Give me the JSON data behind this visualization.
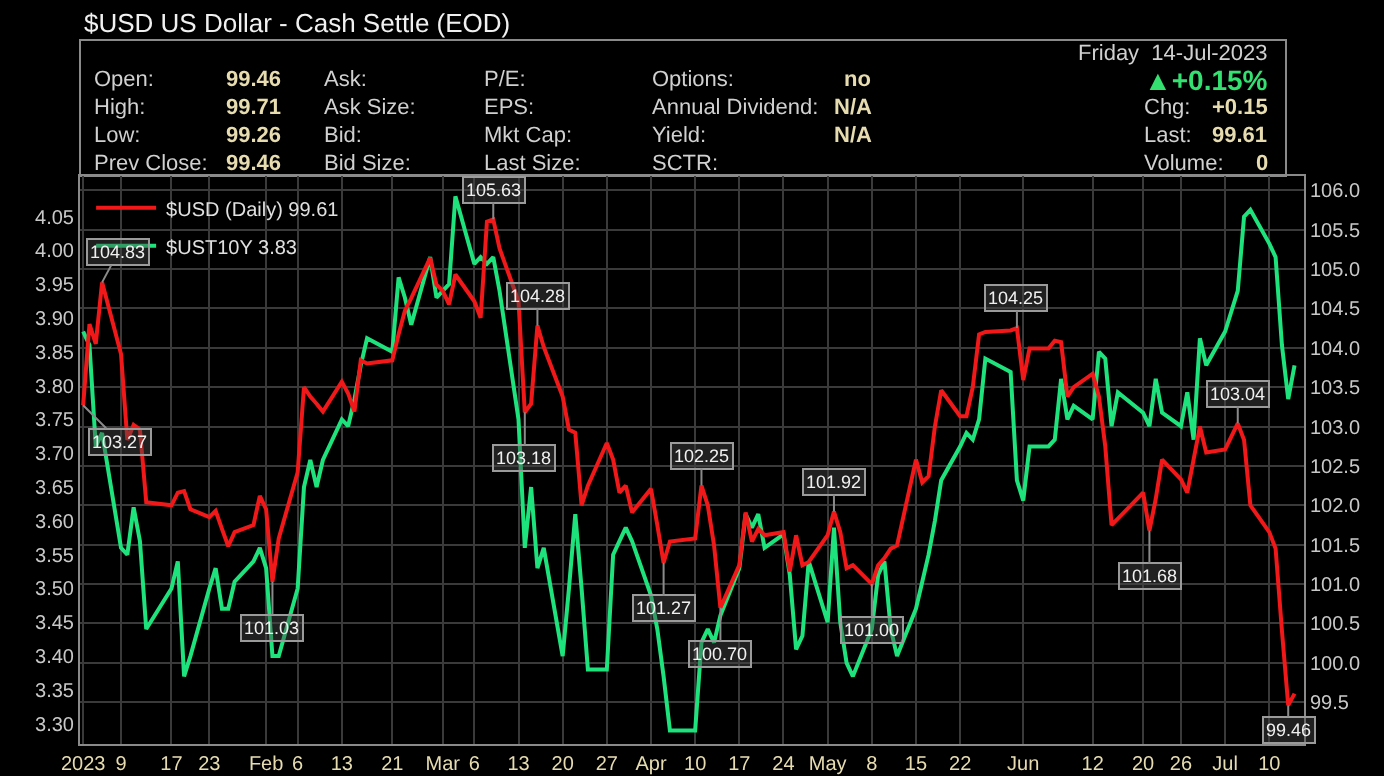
{
  "chart_data": {
    "type": "line",
    "title": "$USD US Dollar - Cash Settle (EOD)",
    "x": [
      "2023-01-03",
      "2023-01-04",
      "2023-01-05",
      "2023-01-06",
      "2023-01-09",
      "2023-01-10",
      "2023-01-11",
      "2023-01-12",
      "2023-01-13",
      "2023-01-17",
      "2023-01-18",
      "2023-01-19",
      "2023-01-20",
      "2023-01-23",
      "2023-01-24",
      "2023-01-25",
      "2023-01-26",
      "2023-01-27",
      "2023-01-30",
      "2023-01-31",
      "2023-02-01",
      "2023-02-02",
      "2023-02-03",
      "2023-02-06",
      "2023-02-07",
      "2023-02-08",
      "2023-02-09",
      "2023-02-10",
      "2023-02-13",
      "2023-02-14",
      "2023-02-15",
      "2023-02-16",
      "2023-02-17",
      "2023-02-21",
      "2023-02-22",
      "2023-02-23",
      "2023-02-24",
      "2023-02-27",
      "2023-02-28",
      "2023-03-01",
      "2023-03-02",
      "2023-03-03",
      "2023-03-06",
      "2023-03-07",
      "2023-03-08",
      "2023-03-09",
      "2023-03-10",
      "2023-03-13",
      "2023-03-14",
      "2023-03-15",
      "2023-03-16",
      "2023-03-17",
      "2023-03-20",
      "2023-03-21",
      "2023-03-22",
      "2023-03-23",
      "2023-03-24",
      "2023-03-27",
      "2023-03-28",
      "2023-03-29",
      "2023-03-30",
      "2023-03-31",
      "2023-04-03",
      "2023-04-04",
      "2023-04-05",
      "2023-04-06",
      "2023-04-10",
      "2023-04-11",
      "2023-04-12",
      "2023-04-13",
      "2023-04-14",
      "2023-04-17",
      "2023-04-18",
      "2023-04-19",
      "2023-04-20",
      "2023-04-21",
      "2023-04-24",
      "2023-04-25",
      "2023-04-26",
      "2023-04-27",
      "2023-04-28",
      "2023-05-01",
      "2023-05-02",
      "2023-05-03",
      "2023-05-04",
      "2023-05-05",
      "2023-05-08",
      "2023-05-09",
      "2023-05-10",
      "2023-05-11",
      "2023-05-12",
      "2023-05-15",
      "2023-05-16",
      "2023-05-17",
      "2023-05-18",
      "2023-05-19",
      "2023-05-22",
      "2023-05-23",
      "2023-05-24",
      "2023-05-25",
      "2023-05-26",
      "2023-05-30",
      "2023-05-31",
      "2023-06-01",
      "2023-06-02",
      "2023-06-05",
      "2023-06-06",
      "2023-06-07",
      "2023-06-08",
      "2023-06-09",
      "2023-06-12",
      "2023-06-13",
      "2023-06-14",
      "2023-06-15",
      "2023-06-16",
      "2023-06-20",
      "2023-06-21",
      "2023-06-22",
      "2023-06-23",
      "2023-06-26",
      "2023-06-27",
      "2023-06-28",
      "2023-06-29",
      "2023-06-30",
      "2023-07-03",
      "2023-07-05",
      "2023-07-06",
      "2023-07-07",
      "2023-07-10",
      "2023-07-11",
      "2023-07-12",
      "2023-07-13",
      "2023-07-14"
    ],
    "series": [
      {
        "name": "$USD (Daily) 99.61",
        "color": "#f01818",
        "axis": "y2",
        "values": [
          103.27,
          104.3,
          104.05,
          104.83,
          103.92,
          102.83,
          103.02,
          102.96,
          102.04,
          102.0,
          102.16,
          102.18,
          101.95,
          101.85,
          101.93,
          101.7,
          101.48,
          101.66,
          101.75,
          102.12,
          101.95,
          101.03,
          101.58,
          102.42,
          103.5,
          103.38,
          103.29,
          103.19,
          103.57,
          103.42,
          103.19,
          103.84,
          103.8,
          103.84,
          104.17,
          104.47,
          104.63,
          105.14,
          104.8,
          104.72,
          104.55,
          104.93,
          104.59,
          104.38,
          105.6,
          105.63,
          105.26,
          104.59,
          103.18,
          103.29,
          104.28,
          104.01,
          103.38,
          102.96,
          102.92,
          102.0,
          102.25,
          102.79,
          102.58,
          102.16,
          102.25,
          101.91,
          102.21,
          101.75,
          101.27,
          101.54,
          101.58,
          102.25,
          102.0,
          101.49,
          100.7,
          101.24,
          101.91,
          101.54,
          101.7,
          101.62,
          101.66,
          101.16,
          101.62,
          101.24,
          101.28,
          101.62,
          101.92,
          101.66,
          101.2,
          101.24,
          101.0,
          101.24,
          101.33,
          101.45,
          101.49,
          102.58,
          102.29,
          102.37,
          103.0,
          103.46,
          103.13,
          103.13,
          103.5,
          104.17,
          104.2,
          104.22,
          104.25,
          103.59,
          103.99,
          103.99,
          104.09,
          104.07,
          103.38,
          103.5,
          103.67,
          103.38,
          102.75,
          101.75,
          101.83,
          102.16,
          101.68,
          102.08,
          102.58,
          102.33,
          102.16,
          102.58,
          103.0,
          102.67,
          102.71,
          103.04,
          102.83,
          102.0,
          101.66,
          101.45,
          100.41,
          99.46,
          99.61
        ],
        "value_labels": [
          "103.27",
          null,
          null,
          "104.83",
          null,
          null,
          null,
          null,
          null,
          null,
          null,
          null,
          null,
          null,
          null,
          null,
          null,
          null,
          null,
          null,
          null,
          "101.03",
          null,
          null,
          null,
          null,
          null,
          null,
          null,
          null,
          null,
          null,
          null,
          null,
          null,
          null,
          null,
          null,
          null,
          null,
          null,
          null,
          null,
          null,
          null,
          "105.63",
          null,
          null,
          "103.18",
          null,
          "104.28",
          null,
          null,
          null,
          null,
          null,
          null,
          null,
          null,
          null,
          null,
          null,
          null,
          null,
          "101.27",
          null,
          null,
          "102.25",
          null,
          null,
          "100.70",
          null,
          null,
          null,
          null,
          null,
          null,
          null,
          null,
          null,
          null,
          null,
          "101.92",
          null,
          null,
          null,
          "101.00",
          null,
          null,
          null,
          null,
          null,
          null,
          null,
          null,
          null,
          null,
          null,
          null,
          null,
          null,
          null,
          "104.25",
          null,
          null,
          null,
          null,
          null,
          null,
          null,
          null,
          null,
          null,
          null,
          null,
          null,
          "101.68",
          null,
          null,
          null,
          null,
          null,
          null,
          null,
          null,
          "103.04",
          null,
          null,
          null,
          null,
          null,
          "99.46",
          null
        ]
      },
      {
        "name": "$UST10Y 3.83",
        "color": "#1ee37c",
        "axis": "y",
        "values": [
          3.88,
          3.86,
          3.71,
          3.73,
          3.56,
          3.55,
          3.62,
          3.57,
          3.44,
          3.5,
          3.54,
          3.37,
          3.4,
          3.5,
          3.53,
          3.47,
          3.47,
          3.51,
          3.54,
          3.56,
          3.53,
          3.4,
          3.4,
          3.5,
          3.65,
          3.69,
          3.65,
          3.69,
          3.75,
          3.74,
          3.78,
          3.83,
          3.87,
          3.85,
          3.96,
          3.93,
          3.89,
          3.99,
          3.93,
          3.94,
          3.95,
          4.08,
          3.98,
          3.99,
          3.98,
          3.99,
          3.94,
          3.75,
          3.56,
          3.65,
          3.53,
          3.56,
          3.4,
          3.5,
          3.61,
          3.5,
          3.38,
          3.38,
          3.55,
          3.57,
          3.59,
          3.57,
          3.49,
          3.44,
          3.37,
          3.29,
          3.29,
          3.42,
          3.44,
          3.42,
          3.46,
          3.53,
          3.61,
          3.59,
          3.61,
          3.56,
          3.58,
          3.52,
          3.41,
          3.43,
          3.54,
          3.45,
          3.59,
          3.45,
          3.39,
          3.37,
          3.44,
          3.52,
          3.54,
          3.44,
          3.4,
          3.47,
          3.51,
          3.55,
          3.6,
          3.66,
          3.71,
          3.73,
          3.72,
          3.75,
          3.84,
          3.82,
          3.66,
          3.63,
          3.71,
          3.71,
          3.72,
          3.81,
          3.75,
          3.77,
          3.75,
          3.85,
          3.84,
          3.74,
          3.79,
          3.76,
          3.74,
          3.81,
          3.76,
          3.74,
          3.79,
          3.72,
          3.87,
          3.83,
          3.88,
          3.94,
          4.05,
          4.06,
          4.01,
          3.99,
          3.86,
          3.78,
          3.83
        ]
      }
    ],
    "xlim": [
      "2023-01-02T12:00",
      "2023-07-15T12:00"
    ],
    "xticks": [
      {
        "value": "2023-01-03",
        "label": "2023"
      },
      {
        "value": "2023-01-09",
        "label": "9"
      },
      {
        "value": "2023-01-17",
        "label": "17"
      },
      {
        "value": "2023-01-23",
        "label": "23"
      },
      {
        "value": "2023-02-01",
        "label": "Feb"
      },
      {
        "value": "2023-02-06",
        "label": "6"
      },
      {
        "value": "2023-02-13",
        "label": "13"
      },
      {
        "value": "2023-02-21",
        "label": "21"
      },
      {
        "value": "2023-03-01",
        "label": "Mar"
      },
      {
        "value": "2023-03-06",
        "label": "6"
      },
      {
        "value": "2023-03-13",
        "label": "13"
      },
      {
        "value": "2023-03-20",
        "label": "20"
      },
      {
        "value": "2023-03-27",
        "label": "27"
      },
      {
        "value": "2023-04-03",
        "label": "Apr"
      },
      {
        "value": "2023-04-10",
        "label": "10"
      },
      {
        "value": "2023-04-17",
        "label": "17"
      },
      {
        "value": "2023-04-24",
        "label": "24"
      },
      {
        "value": "2023-05-01",
        "label": "May"
      },
      {
        "value": "2023-05-08",
        "label": "8"
      },
      {
        "value": "2023-05-15",
        "label": "15"
      },
      {
        "value": "2023-05-22",
        "label": "22"
      },
      {
        "value": "2023-06-01",
        "label": "Jun"
      },
      {
        "value": "2023-06-12",
        "label": "12"
      },
      {
        "value": "2023-06-20",
        "label": "20"
      },
      {
        "value": "2023-06-26",
        "label": "26"
      },
      {
        "value": "2023-07-03",
        "label": "Jul"
      },
      {
        "value": "2023-07-10",
        "label": "10"
      }
    ],
    "ylim": [
      3.27,
      4.11
    ],
    "yticks": [
      {
        "value": 3.3,
        "label": "3.30"
      },
      3.35,
      {
        "value": 3.4,
        "label": "3.40"
      },
      3.45,
      {
        "value": 3.5,
        "label": "3.50"
      },
      3.55,
      {
        "value": 3.6,
        "label": "3.60"
      },
      3.65,
      {
        "value": 3.7,
        "label": "3.70"
      },
      3.75,
      {
        "value": 3.8,
        "label": "3.80"
      },
      3.85,
      {
        "value": 3.9,
        "label": "3.90"
      },
      3.95,
      {
        "value": 4.0,
        "label": "4.00"
      },
      4.05
    ],
    "y2lim": [
      98.97,
      106.18
    ],
    "y2ticks": [
      99.5,
      {
        "value": 100,
        "label": "100.0"
      },
      100.5,
      {
        "value": 101,
        "label": "101.0"
      },
      101.5,
      {
        "value": 102,
        "label": "102.0"
      },
      102.5,
      {
        "value": 103,
        "label": "103.0"
      },
      103.5,
      {
        "value": 104,
        "label": "104.0"
      },
      104.5,
      {
        "value": 105,
        "label": "105.0"
      },
      105.5,
      {
        "value": 106,
        "label": "106.0"
      }
    ],
    "grid": true,
    "legend": "top left",
    "line_style": "solid",
    "annotations": [
      "Open:",
      "99.46",
      "High:",
      "99.71",
      "Low:",
      "99.26",
      "Prev Close:",
      "99.46",
      "Ask:",
      "Ask Size:",
      "Bid:",
      "Bid Size:",
      "P/E:",
      "EPS:",
      "Mkt Cap:",
      "Last Size:",
      "Options:",
      "no",
      "Annual Dividend:",
      "N/A",
      "Yield:",
      "N/A",
      "SCTR:",
      "Friday  14-Jul-2023",
      "▲+0.15%",
      "Chg:",
      "+0.15",
      "Last:",
      "99.61",
      "Volume:",
      "0"
    ]
  }
}
